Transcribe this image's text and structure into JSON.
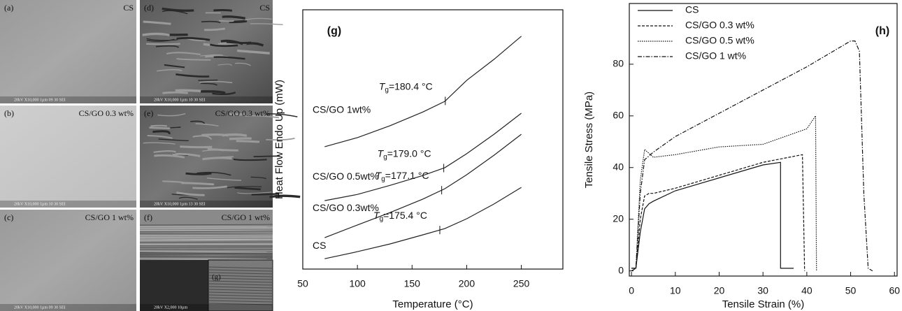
{
  "sem_panels": [
    {
      "letter": "(a)",
      "label": "CS",
      "footer": "20kV  X10,000  1µm  09 30 SEI",
      "kind": "smooth"
    },
    {
      "letter": "(b)",
      "label": "CS/GO 0.3 wt%",
      "footer": "20kV  X10,000  1µm  10 30 SEI",
      "kind": "smooth"
    },
    {
      "letter": "(c)",
      "label": "CS/GO 1 wt%",
      "footer": "20kV  X10,000  1µm  09 30 SEI",
      "kind": "smooth"
    },
    {
      "letter": "(d)",
      "label": "CS",
      "footer": "20kV  X10,000  1µm  10 30 SEI",
      "kind": "rough"
    },
    {
      "letter": "(e)",
      "label": "CS/GO 0.3 wt%",
      "footer": "20kV  X10,000  1µm  13 30 SEI",
      "kind": "rough"
    },
    {
      "letter": "(f)",
      "label": "CS/GO 1 wt%",
      "footer": "20kV  X2,000  10µm",
      "kind": "layered",
      "inset": "(g)"
    }
  ],
  "chart_data": [
    {
      "type": "line",
      "title": "(g)",
      "x_label": "Temperature (°C)",
      "y_label": "Heat Flow Endo Up (mW)",
      "x": [
        70,
        100,
        130,
        160,
        180,
        200,
        225,
        250
      ],
      "xlim": [
        50,
        288
      ],
      "xticks": [
        50,
        100,
        150,
        200,
        250
      ],
      "ylim": [
        0,
        100
      ],
      "tg_symbol": "T",
      "tg_subscript": "g",
      "series": [
        {
          "name": "CS",
          "color": "#222222",
          "values": [
            4.0,
            6.7,
            9.7,
            13.2,
            15.6,
            19.4,
            25.1,
            31.5
          ],
          "tg": 175.4,
          "tg_label": "=175.4 °C"
        },
        {
          "name": "CS/GO 0.3wt%",
          "color": "#222222",
          "values": [
            12.1,
            17.0,
            21.8,
            27.0,
            31.0,
            36.4,
            43.9,
            52.0
          ],
          "tg": 177.1,
          "tg_label": "=177.1 °C"
        },
        {
          "name": "CS/GO 0.5wt%",
          "color": "#222222",
          "values": [
            26.4,
            28.8,
            32.3,
            36.1,
            39.1,
            44.5,
            52.0,
            60.1
          ],
          "tg": 179.0,
          "tg_label": "=179.0 °C"
        },
        {
          "name": "CS/GO 1wt%",
          "color": "#222222",
          "values": [
            47.2,
            50.7,
            55.3,
            60.6,
            64.7,
            72.8,
            80.9,
            89.8
          ],
          "tg": 180.4,
          "tg_label": "=180.4 °C"
        }
      ]
    },
    {
      "type": "line",
      "title": "(h)",
      "x_label": "Tensile Strain (%)",
      "y_label": "Tensile Stress (MPa)",
      "xlim": [
        -0.5,
        60.6
      ],
      "xticks": [
        0,
        10,
        20,
        30,
        40,
        50,
        60
      ],
      "ylim": [
        -2,
        103.5
      ],
      "yticks": [
        0,
        20,
        40,
        60,
        80
      ],
      "legend": "top-left",
      "series": [
        {
          "name": "CS",
          "color": "#111111",
          "dash": "solid",
          "x": [
            0,
            1,
            2,
            3,
            4,
            5,
            10,
            20,
            30,
            34,
            34,
            36,
            37
          ],
          "values": [
            1,
            1,
            15,
            24,
            26,
            27,
            31,
            36,
            41,
            42,
            1,
            1,
            1
          ]
        },
        {
          "name": "CS/GO 0.3 wt%",
          "color": "#111111",
          "dash": "dashed",
          "x": [
            0,
            1,
            2,
            3,
            4,
            5,
            10,
            20,
            30,
            39,
            39.5
          ],
          "values": [
            1,
            1,
            20,
            29,
            30,
            30,
            32,
            37,
            42,
            45,
            0
          ]
        },
        {
          "name": "CS/GO 0.5 wt%",
          "color": "#111111",
          "dash": "dotted",
          "x": [
            0,
            1,
            2,
            3,
            5,
            10,
            20,
            30,
            40,
            42,
            42.2
          ],
          "values": [
            1,
            1,
            35,
            47,
            44,
            45,
            48,
            49,
            55,
            60,
            0
          ]
        },
        {
          "name": "CS/GO 1 wt%",
          "color": "#111111",
          "dash": "dashdot",
          "x": [
            0,
            1,
            2,
            3,
            5,
            10,
            20,
            30,
            40,
            50,
            51,
            52,
            53,
            54,
            55
          ],
          "values": [
            0,
            1,
            30,
            43,
            46,
            52,
            61,
            70,
            79,
            89,
            89,
            85,
            30,
            1,
            0
          ]
        }
      ]
    }
  ]
}
